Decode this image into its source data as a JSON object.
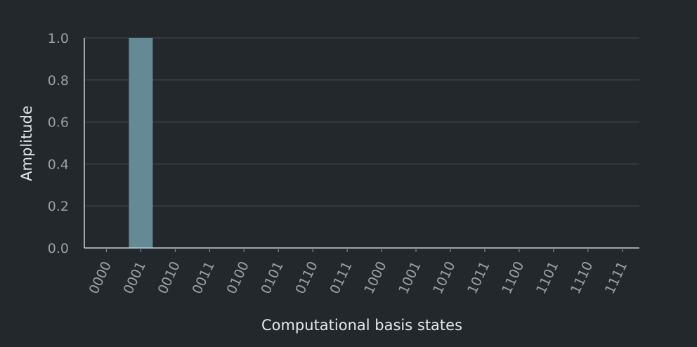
{
  "chart_data": {
    "type": "bar",
    "categories": [
      "0000",
      "0001",
      "0010",
      "0011",
      "0100",
      "0101",
      "0110",
      "0111",
      "1000",
      "1001",
      "1010",
      "1011",
      "1100",
      "1101",
      "1110",
      "1111"
    ],
    "values": [
      0,
      1.0,
      0,
      0,
      0,
      0,
      0,
      0,
      0,
      0,
      0,
      0,
      0,
      0,
      0,
      0
    ],
    "title": "",
    "xlabel": "Computational basis states",
    "ylabel": "Amplitude",
    "ylim": [
      0,
      1.0
    ],
    "yticks": [
      "0.0",
      "0.2",
      "0.4",
      "0.6",
      "0.8",
      "1.0"
    ],
    "grid": true,
    "colors": {
      "background": "#23282c",
      "bar": "#648a96",
      "grid": "#3a4045",
      "axis": "#c9cdd0",
      "tick_text": "#9aa0a4",
      "label_text": "#e6e8ea"
    }
  }
}
